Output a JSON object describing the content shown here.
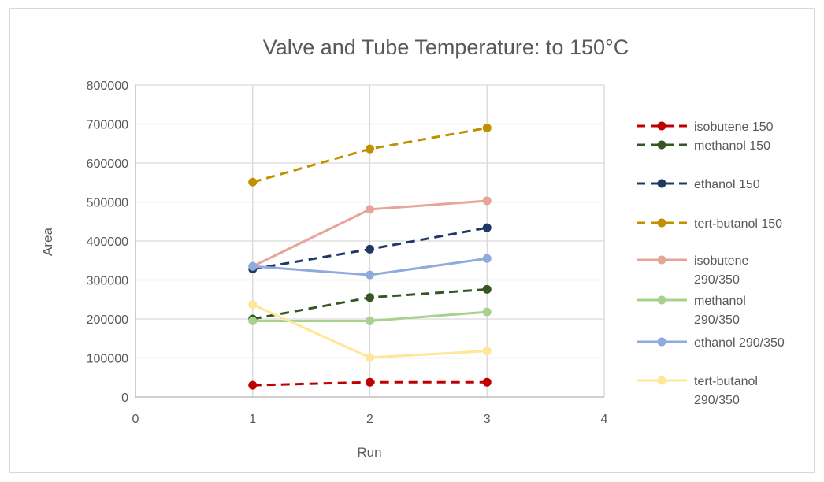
{
  "chart_data": {
    "type": "line",
    "title": "Valve and Tube Temperature: to 150°C",
    "xlabel": "Run",
    "ylabel": "Area",
    "xlim": [
      0,
      4
    ],
    "ylim": [
      0,
      800000
    ],
    "x_ticks": [
      0,
      1,
      2,
      3,
      4
    ],
    "y_ticks": [
      0,
      100000,
      200000,
      300000,
      400000,
      500000,
      600000,
      700000,
      800000
    ],
    "grid": true,
    "legend_position": "right",
    "x": [
      1,
      2,
      3
    ],
    "series": [
      {
        "name": "isobutene 150",
        "values": [
          30000,
          38000,
          38000
        ],
        "color": "#c00000",
        "dashed": true,
        "legend_lines": [
          "isobutene 150"
        ]
      },
      {
        "name": "methanol 150",
        "values": [
          200000,
          255000,
          276000
        ],
        "color": "#375623",
        "dashed": true,
        "legend_lines": [
          "methanol 150"
        ]
      },
      {
        "name": "ethanol 150",
        "values": [
          328000,
          379000,
          434000
        ],
        "color": "#1f3864",
        "dashed": true,
        "legend_lines": [
          "ethanol 150"
        ]
      },
      {
        "name": "tert-butanol 150",
        "values": [
          551000,
          636000,
          690000
        ],
        "color": "#bf9000",
        "dashed": true,
        "legend_lines": [
          "tert-butanol 150"
        ]
      },
      {
        "name": "isobutene 290/350",
        "values": [
          335000,
          481000,
          503000
        ],
        "color": "#e6a598",
        "dashed": false,
        "legend_lines": [
          "isobutene",
          "290/350"
        ]
      },
      {
        "name": "methanol 290/350",
        "values": [
          195000,
          195000,
          218000
        ],
        "color": "#a9d18e",
        "dashed": false,
        "legend_lines": [
          "methanol",
          "290/350"
        ]
      },
      {
        "name": "ethanol 290/350",
        "values": [
          335000,
          313000,
          355000
        ],
        "color": "#8faadc",
        "dashed": false,
        "legend_lines": [
          "ethanol 290/350"
        ]
      },
      {
        "name": "tert-butanol 290/350",
        "values": [
          237000,
          101000,
          118000
        ],
        "color": "#ffe699",
        "dashed": false,
        "legend_lines": [
          "tert-butanol",
          "290/350"
        ]
      }
    ]
  }
}
